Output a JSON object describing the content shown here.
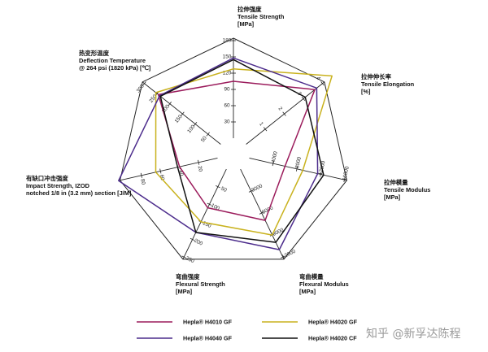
{
  "chart_data": {
    "type": "radar",
    "title": "",
    "axes": [
      {
        "key": "tensile_strength",
        "labels": [
          "拉伸强度",
          "Tensile Strength",
          "[MPa]"
        ],
        "ticks": [
          30,
          60,
          90,
          120,
          150,
          180
        ],
        "max": 180
      },
      {
        "key": "tensile_elongation",
        "labels": [
          "拉伸伸长率",
          "Tensile Elongation",
          "[%]"
        ],
        "ticks": [
          1,
          2,
          3,
          4
        ],
        "max": 4
      },
      {
        "key": "tensile_modulus",
        "labels": [
          "拉伸模量",
          "Tensile Modulus",
          "[MPa]"
        ],
        "ticks": [
          4000,
          8000,
          12000,
          16000
        ],
        "max": 16000
      },
      {
        "key": "flexural_modulus",
        "labels": [
          "弯曲模量",
          "Flexural Modulus",
          "[MPa]"
        ],
        "ticks": [
          3000,
          6000,
          9000,
          12000
        ],
        "max": 12000
      },
      {
        "key": "flexural_strength",
        "labels": [
          "弯曲强度",
          "Flexural Strength",
          "[MPa]"
        ],
        "ticks": [
          50,
          100,
          150,
          200,
          250
        ],
        "max": 250
      },
      {
        "key": "impact_strength",
        "labels": [
          "有缺口冲击强度",
          "Impact Strength, IZOD",
          "notched 1/8 in (3.2 mm) section [J/M]"
        ],
        "ticks": [
          20,
          40,
          60,
          80
        ],
        "max": 100
      },
      {
        "key": "deflection_temperature",
        "labels": [
          "热变形温度",
          "Deflection Temperature",
          "@ 264 psi (1820 kPa) [℃]"
        ],
        "ticks": [
          50,
          100,
          150,
          200,
          250,
          300
        ],
        "max": 300
      }
    ],
    "series": [
      {
        "name": "Hepla® H4010 GF",
        "color": "#9b1c5c",
        "values": [
          105,
          3.6,
          6000,
          7000,
          110,
          40,
          245
        ]
      },
      {
        "name": "Hepla® H4020 GF",
        "color": "#c9b21e",
        "values": [
          128,
          4.5,
          9000,
          9000,
          150,
          65,
          255
        ]
      },
      {
        "name": "Hepla® H4040 GF",
        "color": "#4c2c8c",
        "values": [
          148,
          3.7,
          11500,
          11000,
          180,
          104,
          240
        ]
      },
      {
        "name": "Hepla® H4020 CF",
        "color": "#111111",
        "values": [
          145,
          3.1,
          12500,
          10000,
          180,
          42,
          237
        ]
      }
    ],
    "legend": "bottom"
  },
  "watermark": "知乎 @新孚达陈程"
}
